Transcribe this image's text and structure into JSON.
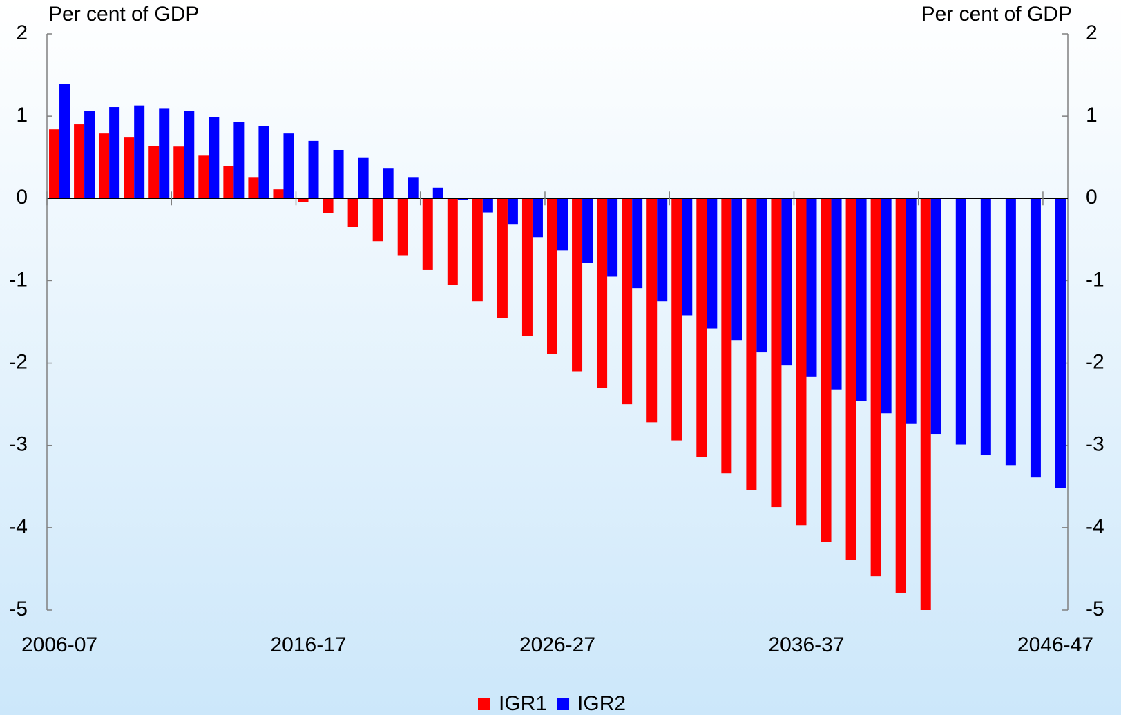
{
  "chart_data": {
    "type": "bar",
    "y_label": "Per cent of GDP",
    "y2_label": "Per cent of GDP",
    "categories": [
      "2006-07",
      null,
      null,
      null,
      null,
      null,
      null,
      null,
      null,
      null,
      "2016-17",
      null,
      null,
      null,
      null,
      null,
      null,
      null,
      null,
      null,
      "2026-27",
      null,
      null,
      null,
      null,
      null,
      null,
      null,
      null,
      null,
      "2036-37",
      null,
      null,
      null,
      null,
      null,
      null,
      null,
      null,
      null,
      "2046-47"
    ],
    "series": [
      {
        "name": "IGR1",
        "color": "#ff0000",
        "values": [
          0.84,
          0.9,
          0.79,
          0.74,
          0.64,
          0.63,
          0.52,
          0.39,
          0.26,
          0.11,
          -0.04,
          -0.18,
          -0.35,
          -0.52,
          -0.69,
          -0.87,
          -1.05,
          -1.25,
          -1.45,
          -1.67,
          -1.89,
          -2.1,
          -2.3,
          -2.5,
          -2.72,
          -2.94,
          -3.14,
          -3.34,
          -3.54,
          -3.75,
          -3.97,
          -4.17,
          -4.39,
          -4.59,
          -4.79,
          -5.0,
          null,
          null,
          null,
          null,
          null
        ]
      },
      {
        "name": "IGR2",
        "color": "#0000ff",
        "values": [
          1.39,
          1.06,
          1.11,
          1.13,
          1.09,
          1.06,
          0.99,
          0.93,
          0.88,
          0.79,
          0.7,
          0.59,
          0.5,
          0.37,
          0.26,
          0.13,
          -0.02,
          -0.17,
          -0.31,
          -0.47,
          -0.63,
          -0.78,
          -0.95,
          -1.09,
          -1.25,
          -1.42,
          -1.58,
          -1.72,
          -1.87,
          -2.03,
          -2.17,
          -2.32,
          -2.46,
          -2.61,
          -2.74,
          -2.86,
          -2.99,
          -3.12,
          -3.24,
          -3.39,
          -3.52
        ]
      }
    ],
    "ylim": [
      -5,
      2
    ],
    "yticks": [
      -5,
      -4,
      -3,
      -2,
      -1,
      0,
      1,
      2
    ],
    "y2lim": [
      -5,
      2
    ],
    "y2ticks": [
      -5,
      -4,
      -3,
      -2,
      -1,
      0,
      1,
      2
    ],
    "legend": "bottom",
    "grid": false
  }
}
